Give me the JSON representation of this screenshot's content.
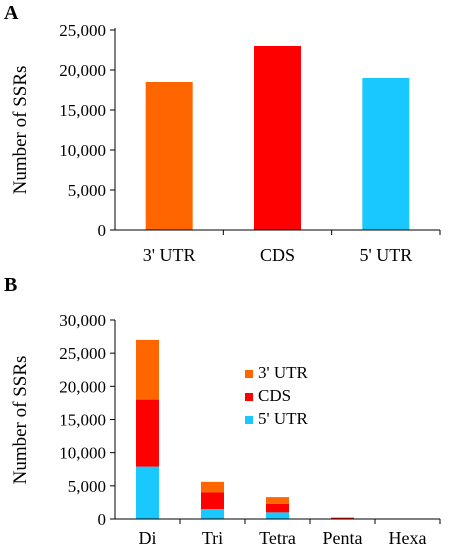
{
  "chart_data": [
    {
      "panel_label": "A",
      "type": "bar",
      "ylabel": "Number of SSRs",
      "xlabel": "",
      "categories": [
        "3' UTR",
        "CDS",
        "5' UTR"
      ],
      "values": [
        18500,
        23000,
        19000
      ],
      "colors": [
        "#ff6600",
        "#ff0000",
        "#19c8ff"
      ],
      "ylim": [
        0,
        25000
      ],
      "yticks": [
        "0",
        "5,000",
        "10,000",
        "15,000",
        "20,000",
        "25,000"
      ],
      "grid": false
    },
    {
      "panel_label": "B",
      "type": "bar",
      "stacked": true,
      "ylabel": "Number of SSRs",
      "xlabel": "",
      "categories": [
        "Di",
        "Tri",
        "Tetra",
        "Penta",
        "Hexa"
      ],
      "series": [
        {
          "name": "5' UTR",
          "color": "#19c8ff",
          "values": [
            7900,
            1500,
            1000,
            60,
            15
          ]
        },
        {
          "name": "CDS",
          "color": "#ff0000",
          "values": [
            10100,
            2500,
            1300,
            90,
            25
          ]
        },
        {
          "name": "3' UTR",
          "color": "#ff6600",
          "values": [
            9000,
            1600,
            1000,
            80,
            20
          ]
        }
      ],
      "legend_order": [
        "3' UTR",
        "CDS",
        "5' UTR"
      ],
      "legend_position": "top-center",
      "ylim": [
        0,
        30000
      ],
      "yticks": [
        "0",
        "5,000",
        "10,000",
        "15,000",
        "20,000",
        "25,000",
        "30,000"
      ],
      "grid": false
    }
  ]
}
